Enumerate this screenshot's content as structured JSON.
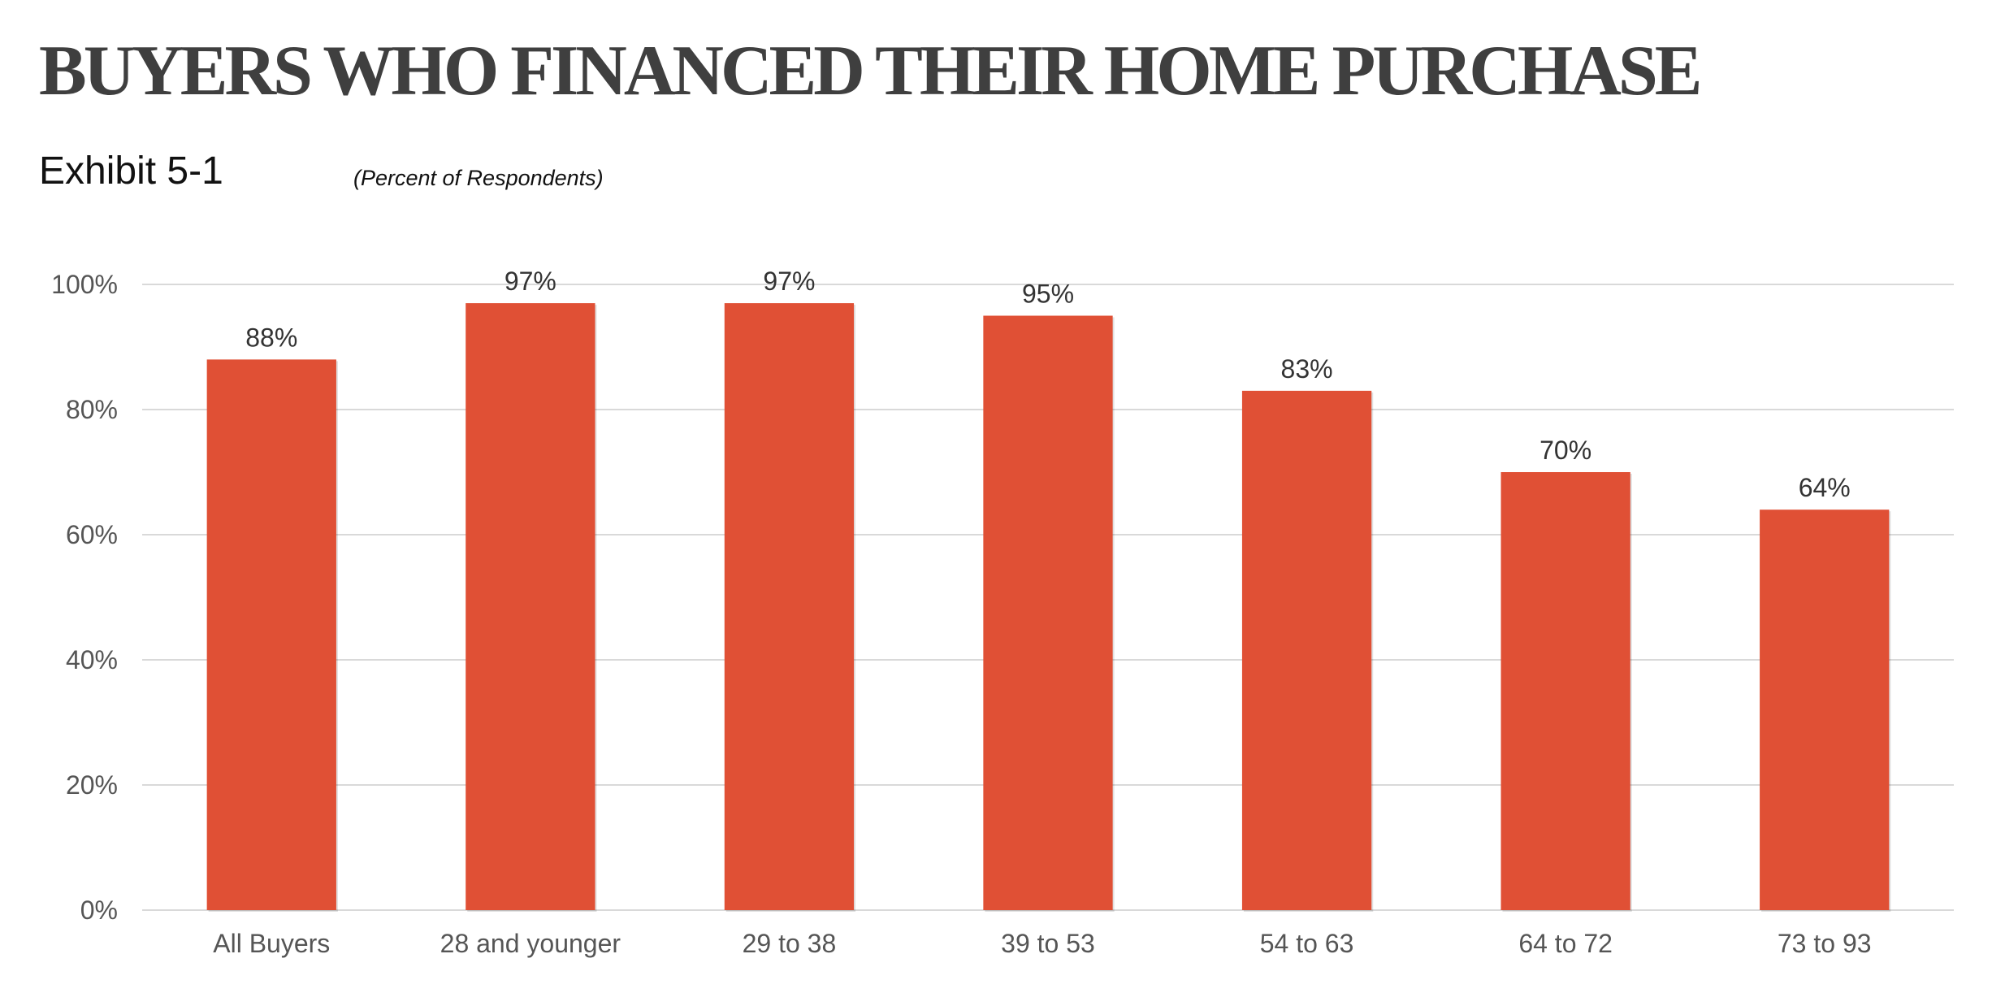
{
  "header": {
    "title": "BUYERS WHO FINANCED THEIR HOME PURCHASE",
    "exhibit": "Exhibit 5-1",
    "subtitle": "(Percent of Respondents)"
  },
  "colors": {
    "bar": "#e05035",
    "grid": "#d9d9d9",
    "axis_text": "#555555",
    "value_text": "#333333"
  },
  "chart_data": {
    "type": "bar",
    "title": "",
    "xlabel": "",
    "ylabel": "",
    "categories": [
      "All Buyers",
      "28 and younger",
      "29 to 38",
      "39 to 53",
      "54 to 63",
      "64 to 72",
      "73 to 93"
    ],
    "values": [
      88,
      97,
      97,
      95,
      83,
      70,
      64
    ],
    "value_labels": [
      "88%",
      "97%",
      "97%",
      "95%",
      "83%",
      "70%",
      "64%"
    ],
    "ylim": [
      0,
      100
    ],
    "yticks": [
      0,
      20,
      40,
      60,
      80,
      100
    ],
    "ytick_labels": [
      "0%",
      "20%",
      "40%",
      "60%",
      "80%",
      "100%"
    ],
    "grid": true,
    "legend": "none"
  }
}
